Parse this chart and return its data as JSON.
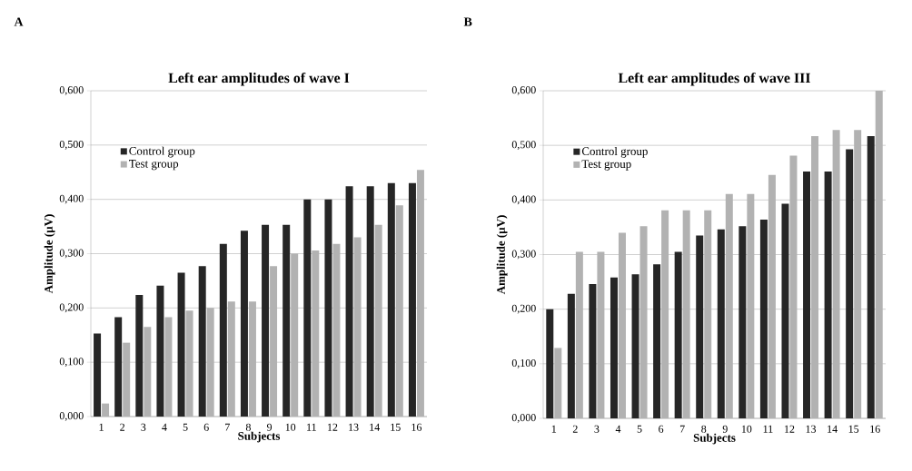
{
  "chart_data": [
    {
      "type": "bar",
      "title": "Left ear amplitudes of wave I",
      "xlabel": "Subjects",
      "ylabel": "Amplitude  (µV)",
      "annotations": [
        "A"
      ],
      "categories": [
        "1",
        "2",
        "3",
        "4",
        "5",
        "6",
        "7",
        "8",
        "9",
        "10",
        "11",
        "12",
        "13",
        "14",
        "15",
        "16"
      ],
      "series": [
        {
          "name": "Control group",
          "color": "#262626",
          "values": [
            0.153,
            0.183,
            0.224,
            0.241,
            0.265,
            0.277,
            0.318,
            0.342,
            0.353,
            0.353,
            0.4,
            0.4,
            0.424,
            0.424,
            0.43,
            0.43
          ]
        },
        {
          "name": "Test group",
          "color": "#b2b2b2",
          "values": [
            0.024,
            0.136,
            0.165,
            0.183,
            0.195,
            0.2,
            0.212,
            0.212,
            0.277,
            0.3,
            0.306,
            0.318,
            0.33,
            0.353,
            0.389,
            0.454
          ]
        }
      ],
      "ylim": [
        0,
        0.6
      ],
      "yticks": [
        {
          "value": 0,
          "label": "0,000"
        },
        {
          "value": 0.1,
          "label": "0,100"
        },
        {
          "value": 0.2,
          "label": "0,200"
        },
        {
          "value": 0.3,
          "label": "0,300"
        },
        {
          "value": 0.4,
          "label": "0,400"
        },
        {
          "value": 0.5,
          "label": "0,500"
        },
        {
          "value": 0.6,
          "label": "0,600"
        }
      ],
      "grid": "y",
      "legend": "top left"
    },
    {
      "type": "bar",
      "title": "Left ear amplitudes of wave III",
      "xlabel": "Subjects",
      "ylabel": "Amplitude  (µV)",
      "annotations": [
        "B"
      ],
      "categories": [
        "1",
        "2",
        "3",
        "4",
        "5",
        "6",
        "7",
        "8",
        "9",
        "10",
        "11",
        "12",
        "13",
        "14",
        "15",
        "16"
      ],
      "series": [
        {
          "name": "Control group",
          "color": "#262626",
          "values": [
            0.2,
            0.228,
            0.246,
            0.258,
            0.264,
            0.282,
            0.305,
            0.335,
            0.346,
            0.352,
            0.364,
            0.393,
            0.452,
            0.452,
            0.493,
            0.517
          ]
        },
        {
          "name": "Test group",
          "color": "#b2b2b2",
          "values": [
            0.129,
            0.305,
            0.305,
            0.34,
            0.352,
            0.381,
            0.381,
            0.381,
            0.411,
            0.411,
            0.446,
            0.481,
            0.517,
            0.528,
            0.528,
            0.6
          ]
        }
      ],
      "ylim": [
        0,
        0.6
      ],
      "yticks": [
        {
          "value": 0,
          "label": "0,000"
        },
        {
          "value": 0.1,
          "label": "0,100"
        },
        {
          "value": 0.2,
          "label": "0,200"
        },
        {
          "value": 0.3,
          "label": "0,300"
        },
        {
          "value": 0.4,
          "label": "0,400"
        },
        {
          "value": 0.5,
          "label": "0,500"
        },
        {
          "value": 0.6,
          "label": "0,600"
        }
      ],
      "grid": "y",
      "legend": "top left"
    }
  ]
}
